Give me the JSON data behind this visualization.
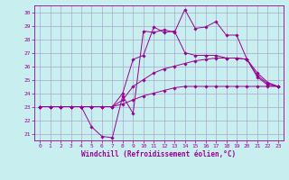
{
  "xlabel": "Windchill (Refroidissement éolien,°C)",
  "background_color": "#c8eef0",
  "line_color": "#990099",
  "grid_color": "#aaaacc",
  "xlim": [
    -0.5,
    23.5
  ],
  "ylim": [
    20.5,
    30.5
  ],
  "yticks": [
    21,
    22,
    23,
    24,
    25,
    26,
    27,
    28,
    29,
    30
  ],
  "xticks": [
    0,
    1,
    2,
    3,
    4,
    5,
    6,
    7,
    8,
    9,
    10,
    11,
    12,
    13,
    14,
    15,
    16,
    17,
    18,
    19,
    20,
    21,
    22,
    23
  ],
  "series": [
    [
      23,
      23,
      23,
      23,
      23,
      21.5,
      20.8,
      20.7,
      23.8,
      22.5,
      28.6,
      28.5,
      28.7,
      28.5,
      30.2,
      28.8,
      28.9,
      29.3,
      28.3,
      28.3,
      26.5,
      25.3,
      24.7,
      24.5
    ],
    [
      23,
      23,
      23,
      23,
      23,
      23,
      23,
      23,
      24.0,
      26.5,
      26.8,
      28.9,
      28.5,
      28.6,
      27.0,
      26.8,
      26.8,
      26.8,
      26.6,
      26.6,
      26.5,
      25.2,
      24.6,
      24.5
    ],
    [
      23,
      23,
      23,
      23,
      23,
      23,
      23,
      23,
      23.5,
      24.5,
      25.0,
      25.5,
      25.8,
      26.0,
      26.2,
      26.4,
      26.5,
      26.6,
      26.6,
      26.6,
      26.5,
      25.5,
      24.8,
      24.5
    ],
    [
      23,
      23,
      23,
      23,
      23,
      23,
      23,
      23,
      23.2,
      23.5,
      23.8,
      24.0,
      24.2,
      24.4,
      24.5,
      24.5,
      24.5,
      24.5,
      24.5,
      24.5,
      24.5,
      24.5,
      24.5,
      24.5
    ]
  ]
}
